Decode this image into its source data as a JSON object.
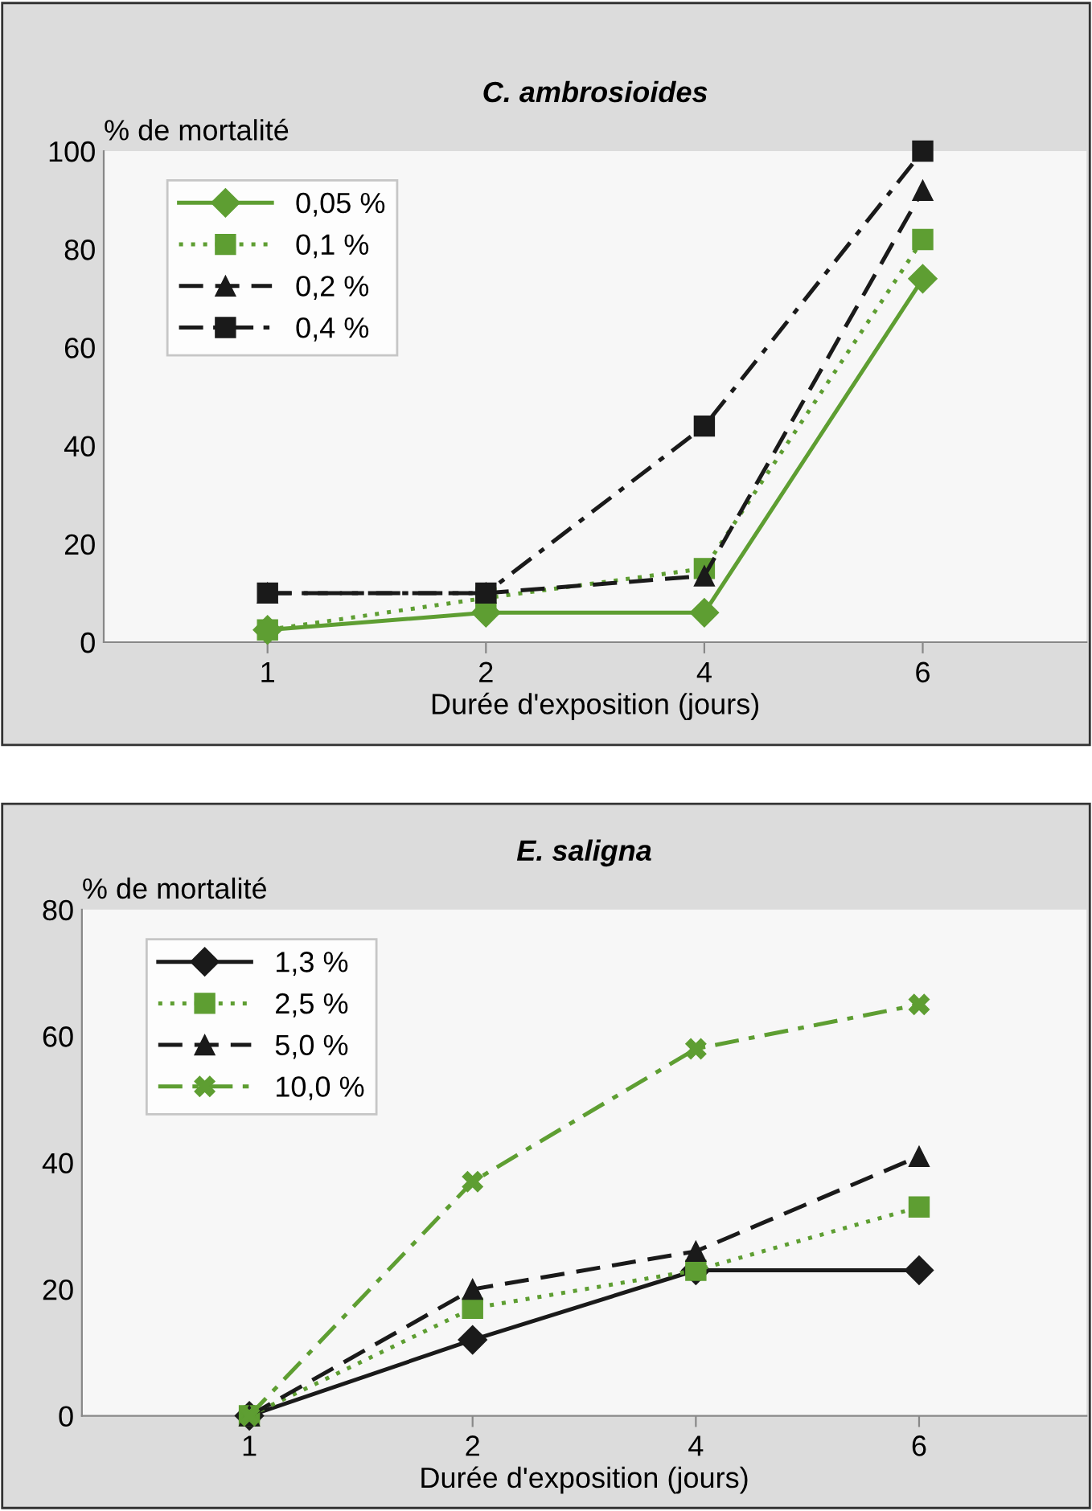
{
  "chart_data": [
    {
      "type": "line",
      "title": "C. ambrosioides",
      "ylabel": "% de mortalité",
      "xlabel": "Durée d'exposition (jours)",
      "categories": [
        "1",
        "2",
        "4",
        "6"
      ],
      "ylim": [
        0,
        100
      ],
      "yticks": [
        0,
        20,
        40,
        60,
        80,
        100
      ],
      "grid": false,
      "legend": "top left",
      "series": [
        {
          "name": "0,05 %",
          "color": "#5e9e32",
          "values": [
            2.5,
            6,
            6,
            74
          ],
          "marker": "diamond",
          "line_style": "solid"
        },
        {
          "name": "0,1 %",
          "color": "#5e9e32",
          "values": [
            2.5,
            9,
            15,
            82
          ],
          "marker": "square",
          "line_style": "dotted"
        },
        {
          "name": "0,2 %",
          "color": "#1a1a1a",
          "values": [
            10,
            10,
            13.5,
            92
          ],
          "marker": "triangle",
          "line_style": "dashed"
        },
        {
          "name": "0,4 %",
          "color": "#1a1a1a",
          "values": [
            10,
            10,
            44,
            100
          ],
          "marker": "square",
          "line_style": "dashdot"
        }
      ]
    },
    {
      "type": "line",
      "title": "E. saligna",
      "ylabel": "% de mortalité",
      "xlabel": "Durée d'exposition (jours)",
      "categories": [
        "1",
        "2",
        "4",
        "6"
      ],
      "ylim": [
        0,
        80
      ],
      "yticks": [
        0,
        20,
        40,
        60,
        80
      ],
      "grid": false,
      "legend": "top left",
      "series": [
        {
          "name": "1,3 %",
          "color": "#1a1a1a",
          "values": [
            0,
            12,
            23,
            23
          ],
          "marker": "diamond",
          "line_style": "solid"
        },
        {
          "name": "2,5 %",
          "color": "#5e9e32",
          "values": [
            0,
            17,
            23,
            33
          ],
          "marker": "square",
          "line_style": "dotted"
        },
        {
          "name": "5,0 %",
          "color": "#1a1a1a",
          "values": [
            0,
            20,
            26,
            41
          ],
          "marker": "triangle",
          "line_style": "dashed"
        },
        {
          "name": "10,0 %",
          "color": "#5e9e32",
          "values": [
            0,
            37,
            58,
            65
          ],
          "marker": "cross",
          "line_style": "dashdot"
        }
      ]
    }
  ]
}
